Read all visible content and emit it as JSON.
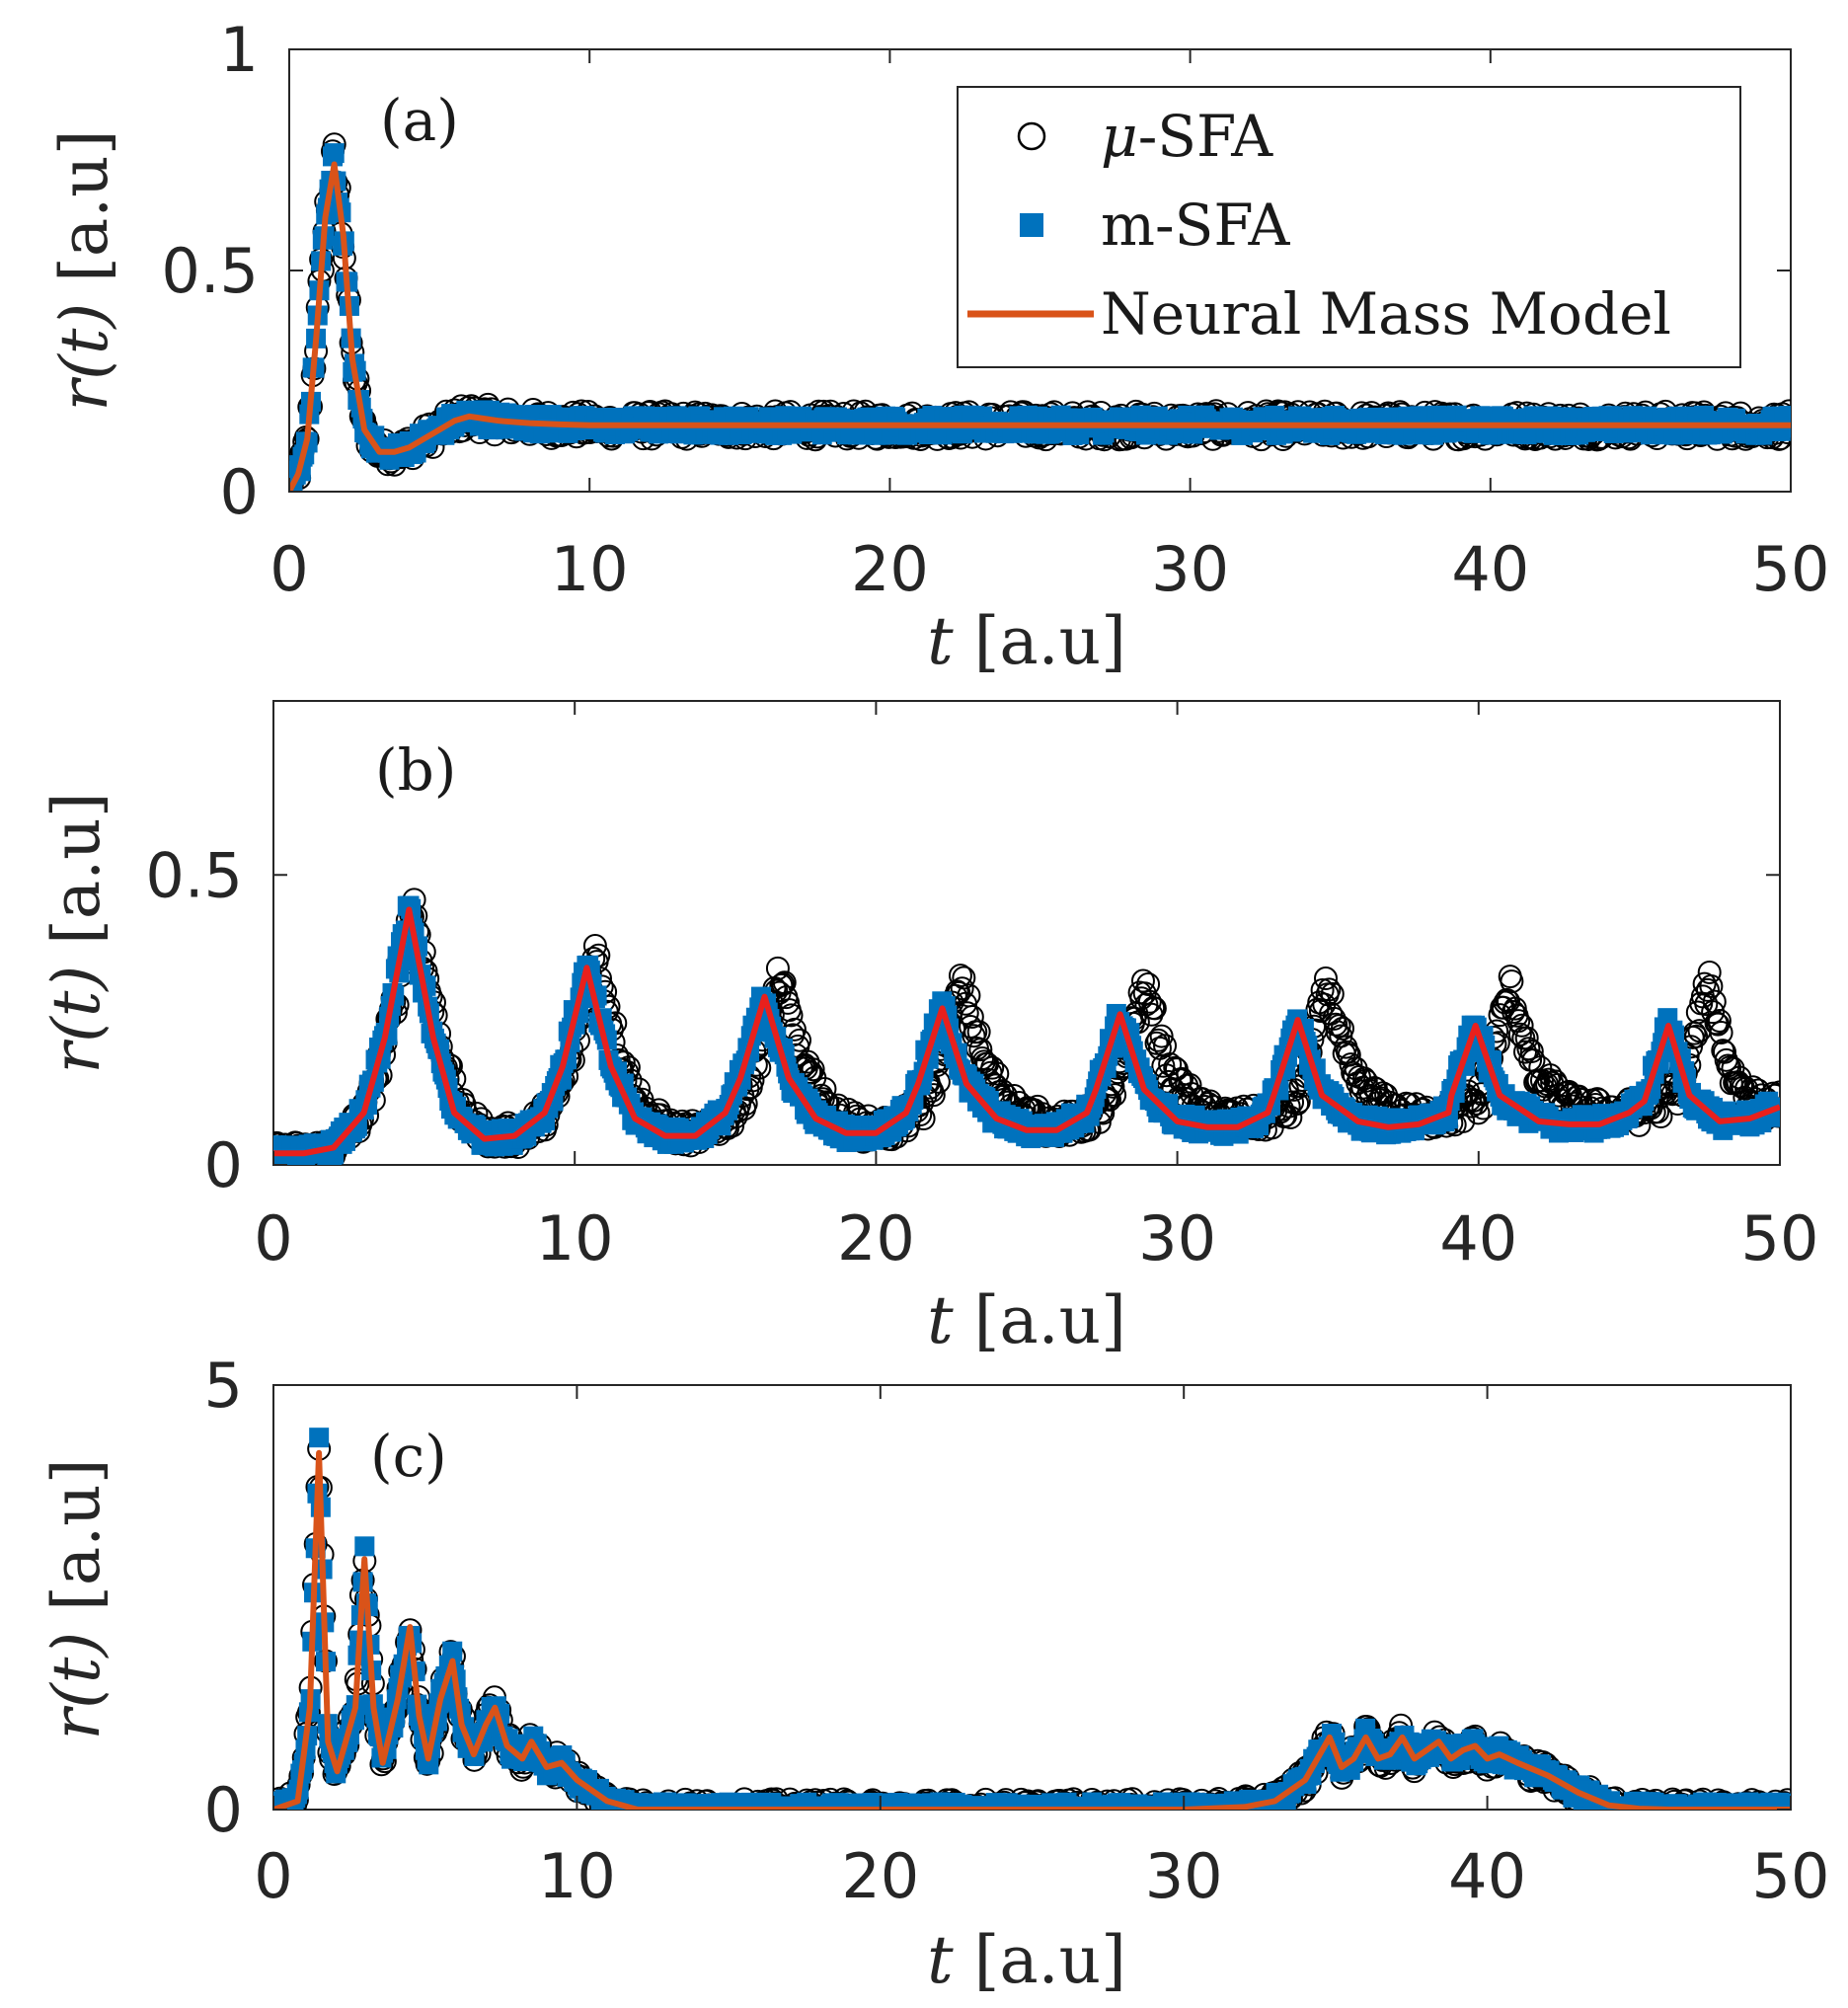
{
  "chart_data": [
    {
      "type": "line",
      "panel_label": "(a)",
      "xlabel_var": "t",
      "xlabel_unit": "[a.u]",
      "ylabel_var": "r(t)",
      "ylabel_unit": "[a.u]",
      "xlim": [
        0,
        50
      ],
      "ylim": [
        0,
        1
      ],
      "xticks": [
        0,
        10,
        20,
        30,
        40,
        50
      ],
      "xtick_labels": [
        "0",
        "10",
        "20",
        "30",
        "40",
        "50"
      ],
      "yticks": [
        0,
        0.5,
        1
      ],
      "ytick_labels": [
        "0",
        "0.5",
        "1"
      ],
      "legend": {
        "position": "top-right",
        "entries": [
          {
            "name": "μ-SFA",
            "var": "μ",
            "suffix": "-SFA",
            "marker": "open-circle",
            "color": "#000000"
          },
          {
            "name": "m-SFA",
            "marker": "filled-square",
            "color": "#0072BD"
          },
          {
            "name": "Neural Mass Model",
            "marker": "line",
            "color": "#D95319"
          }
        ]
      },
      "series": [
        {
          "name": "Neural Mass Model",
          "color": "#D95319",
          "x": [
            0,
            0.3,
            0.6,
            0.9,
            1.2,
            1.5,
            1.8,
            2.1,
            2.5,
            3,
            3.5,
            4,
            4.5,
            5,
            5.5,
            6,
            6.5,
            7,
            8,
            9,
            10,
            12,
            15,
            20,
            30,
            40,
            50
          ],
          "y": [
            0,
            0.04,
            0.12,
            0.35,
            0.62,
            0.74,
            0.58,
            0.3,
            0.14,
            0.09,
            0.09,
            0.1,
            0.12,
            0.14,
            0.16,
            0.17,
            0.165,
            0.16,
            0.155,
            0.152,
            0.15,
            0.15,
            0.15,
            0.15,
            0.15,
            0.15,
            0.15
          ]
        }
      ]
    },
    {
      "type": "line",
      "panel_label": "(b)",
      "xlabel_var": "t",
      "xlabel_unit": "[a.u]",
      "ylabel_var": "r(t)",
      "ylabel_unit": "[a.u]",
      "xlim": [
        0,
        50
      ],
      "ylim": [
        0,
        0.8
      ],
      "xticks": [
        0,
        10,
        20,
        30,
        40,
        50
      ],
      "xtick_labels": [
        "0",
        "10",
        "20",
        "30",
        "40",
        "50"
      ],
      "yticks": [
        0,
        0.5
      ],
      "ytick_labels": [
        "0",
        "0.5"
      ],
      "series": [
        {
          "name": "Neural Mass Model",
          "color": "#E8201C",
          "x": [
            0,
            1,
            2,
            3,
            3.7,
            4.5,
            5.3,
            6,
            7,
            8,
            9,
            9.6,
            10.4,
            11.2,
            12,
            13,
            14,
            15,
            15.5,
            16.3,
            17.1,
            18,
            19,
            20,
            21,
            21.4,
            22.2,
            23,
            24,
            25,
            26,
            27,
            27.3,
            28.1,
            28.9,
            30,
            31,
            32,
            33,
            33.2,
            34,
            34.8,
            36,
            37,
            38,
            39,
            39.1,
            39.9,
            40.7,
            42,
            43,
            44,
            45,
            45.5,
            46.3,
            47,
            48,
            49,
            50
          ],
          "y": [
            0.02,
            0.02,
            0.03,
            0.09,
            0.22,
            0.44,
            0.22,
            0.09,
            0.045,
            0.05,
            0.09,
            0.17,
            0.34,
            0.17,
            0.08,
            0.05,
            0.05,
            0.09,
            0.15,
            0.29,
            0.15,
            0.08,
            0.055,
            0.055,
            0.09,
            0.14,
            0.27,
            0.14,
            0.08,
            0.06,
            0.06,
            0.09,
            0.13,
            0.26,
            0.13,
            0.075,
            0.065,
            0.065,
            0.09,
            0.12,
            0.25,
            0.12,
            0.075,
            0.065,
            0.07,
            0.09,
            0.12,
            0.24,
            0.12,
            0.075,
            0.07,
            0.07,
            0.09,
            0.11,
            0.24,
            0.12,
            0.075,
            0.08,
            0.1
          ]
        }
      ]
    },
    {
      "type": "line",
      "panel_label": "(c)",
      "xlabel_var": "t",
      "xlabel_unit": "[a.u]",
      "ylabel_var": "r(t)",
      "ylabel_unit": "[a.u]",
      "xlim": [
        0,
        50
      ],
      "ylim": [
        0,
        5
      ],
      "xticks": [
        0,
        10,
        20,
        30,
        40,
        50
      ],
      "xtick_labels": [
        "0",
        "10",
        "20",
        "30",
        "40",
        "50"
      ],
      "yticks": [
        0,
        5
      ],
      "ytick_labels": [
        "0",
        "5"
      ],
      "series": [
        {
          "name": "Neural Mass Model",
          "color": "#D95319",
          "x": [
            0,
            0.8,
            1.2,
            1.5,
            1.8,
            2.1,
            2.7,
            3,
            3.3,
            3.6,
            4.1,
            4.5,
            4.8,
            5.1,
            5.5,
            5.9,
            6.2,
            6.6,
            7,
            7.3,
            7.7,
            8.2,
            8.5,
            9,
            9.5,
            10,
            11,
            12,
            15,
            20,
            25,
            30,
            32,
            33,
            34,
            34.8,
            35.2,
            35.6,
            36,
            36.4,
            36.8,
            37.2,
            37.6,
            38,
            38.4,
            38.8,
            39.2,
            39.6,
            40,
            40.4,
            41,
            42,
            43,
            44,
            45,
            46,
            50
          ],
          "y": [
            0,
            0.1,
            1.2,
            4.2,
            0.8,
            0.45,
            1.2,
            2.95,
            1.2,
            0.55,
            1.3,
            2.15,
            1.1,
            0.6,
            1.3,
            1.75,
            1.0,
            0.65,
            1.0,
            1.2,
            0.75,
            0.6,
            0.8,
            0.5,
            0.55,
            0.35,
            0.1,
            0,
            0,
            0,
            0,
            0,
            0.03,
            0.1,
            0.35,
            0.85,
            0.5,
            0.6,
            0.85,
            0.6,
            0.65,
            0.85,
            0.6,
            0.7,
            0.8,
            0.6,
            0.7,
            0.75,
            0.6,
            0.65,
            0.55,
            0.4,
            0.2,
            0.05,
            0.01,
            0,
            0
          ]
        }
      ]
    }
  ]
}
